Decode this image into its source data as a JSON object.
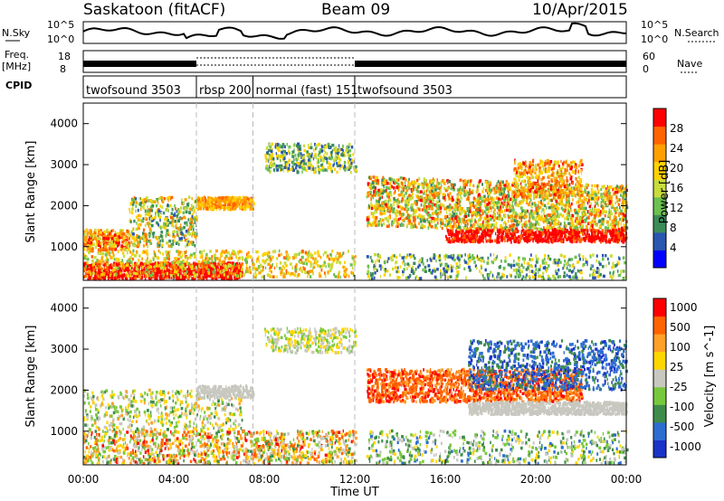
{
  "header": {
    "station": "Saskatoon (fitACF)",
    "beam": "Beam 09",
    "date": "10/Apr/2015"
  },
  "aux_labels": {
    "nsky": "N.Sky",
    "nsearch": "N.Search",
    "nsky_hi": "10^5",
    "nsky_lo": "10^0",
    "freq": "Freq.",
    "freq_unit": "[MHz]",
    "freq_hi": "18",
    "freq_lo": "8",
    "nave": "Nave",
    "nave_hi": "60",
    "nave_lo": "0",
    "cpid": "CPID"
  },
  "colors": {
    "power_scale": [
      "#0000ff",
      "#2a55b0",
      "#3c8c5a",
      "#6cc050",
      "#c8dc3c",
      "#ffd200",
      "#ffa000",
      "#ff6400",
      "#ff0000"
    ],
    "velocity_scale": [
      "#1a33c8",
      "#2d6ed2",
      "#3f8c4a",
      "#78c83c",
      "#c8c8c0",
      "#ffd700",
      "#ffa028",
      "#ff6400",
      "#ff0000"
    ]
  },
  "chart_data": [
    {
      "type": "line",
      "name": "N.Sky / N.Search panel",
      "ylim_labels": [
        "10^0",
        "10^5"
      ],
      "x_range": [
        "00:00",
        "24:00"
      ]
    },
    {
      "type": "line",
      "name": "Freq./Nave panel",
      "freq_range_MHz": [
        8,
        18
      ],
      "nave_range": [
        0,
        60
      ]
    },
    {
      "type": "table",
      "name": "CPID",
      "modes": [
        {
          "label": "twofsound 3503",
          "start_h": 0.0,
          "end_h": 5.0
        },
        {
          "label": "rbsp 200",
          "start_h": 5.0,
          "end_h": 7.5
        },
        {
          "label": "normal (fast) 151",
          "start_h": 7.5,
          "end_h": 12.0
        },
        {
          "label": "twofsound 3503",
          "start_h": 12.0,
          "end_h": 24.0
        }
      ]
    },
    {
      "type": "heatmap",
      "quantity": "Power",
      "ylabel": "Slant Range [km]",
      "ylim": [
        180,
        4500
      ],
      "yticks": [
        1000,
        2000,
        3000,
        4000
      ],
      "colorbar_label": "Power [dB]",
      "colorbar_range": [
        0,
        32
      ],
      "colorbar_ticks": [
        4,
        8,
        12,
        16,
        20,
        24,
        28
      ]
    },
    {
      "type": "heatmap",
      "quantity": "Velocity",
      "ylabel": "Slant Range [km]",
      "xlabel": "Time UT",
      "ylim": [
        180,
        4500
      ],
      "yticks": [
        1000,
        2000,
        3000,
        4000
      ],
      "xticks": [
        "00:00",
        "04:00",
        "08:00",
        "12:00",
        "16:00",
        "20:00",
        "00:00"
      ],
      "colorbar_label": "Velocity [m s^-1]",
      "colorbar_ticks": [
        1000,
        500,
        100,
        25,
        -25,
        -100,
        -500,
        -1000
      ]
    }
  ]
}
